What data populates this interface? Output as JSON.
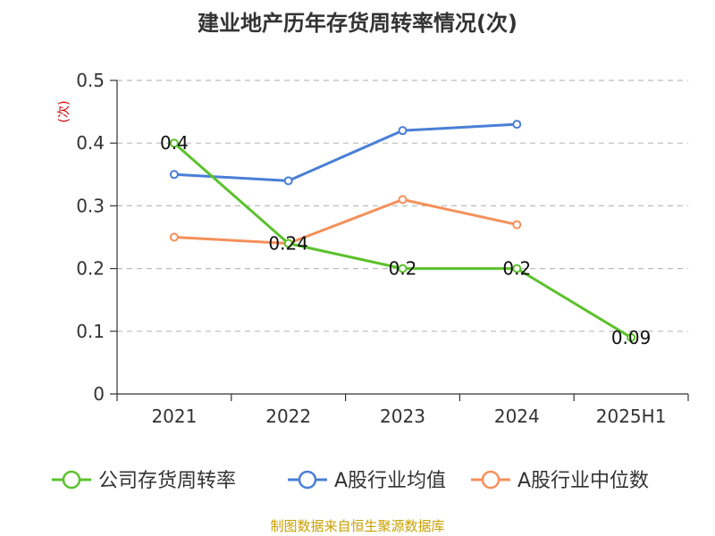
{
  "chart_data": {
    "type": "line",
    "title": "建业地产历年存货周转率情况(次)",
    "ylabel": "(次)",
    "xlabel": "",
    "categories": [
      "2021",
      "2022",
      "2023",
      "2024",
      "2025H1"
    ],
    "ylim": [
      0,
      0.5
    ],
    "yticks": [
      "0",
      "0.1",
      "0.2",
      "0.3",
      "0.4",
      "0.5"
    ],
    "grid": true,
    "legend_position": "bottom",
    "series": [
      {
        "name": "公司存货周转率",
        "color": "#5cc12c",
        "values": [
          0.4,
          0.24,
          0.2,
          0.2,
          0.09
        ],
        "labels": [
          "0.4",
          "0.24",
          "0.2",
          "0.2",
          "0.09"
        ]
      },
      {
        "name": "A股行业均值",
        "color": "#4a7fd6",
        "values": [
          0.35,
          0.34,
          0.42,
          0.43,
          null
        ]
      },
      {
        "name": "A股行业中位数",
        "color": "#f5905a",
        "values": [
          0.25,
          0.24,
          0.31,
          0.27,
          null
        ]
      }
    ],
    "source": "制图数据来自恒生聚源数据库"
  }
}
